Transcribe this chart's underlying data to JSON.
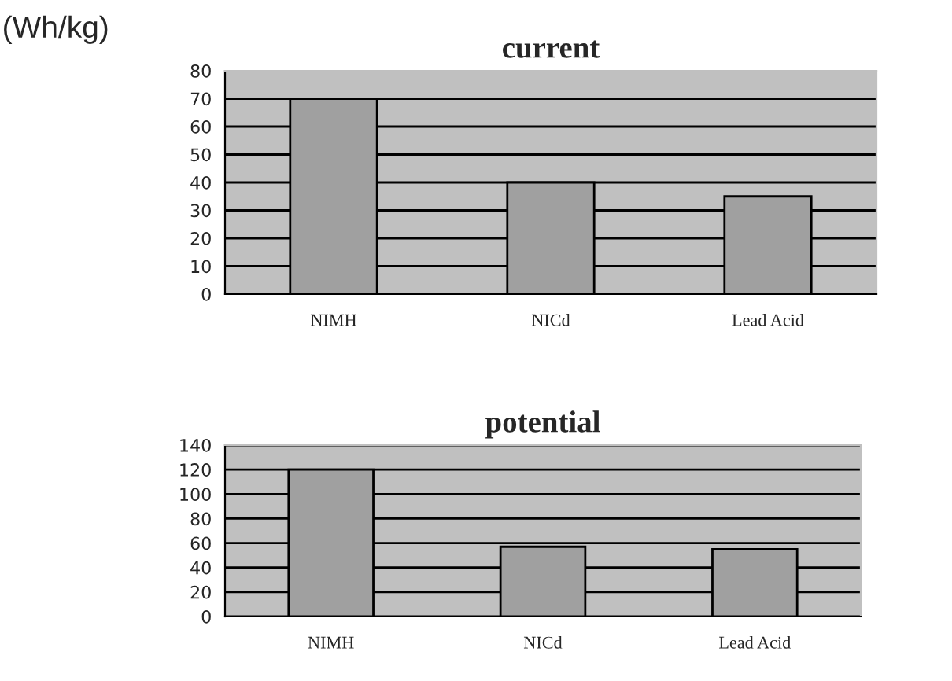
{
  "chart_data": [
    {
      "type": "bar",
      "title": "current",
      "ylabel": "(Wh/kg)",
      "categories": [
        "NIMH",
        "NICd",
        "Lead Acid"
      ],
      "values": [
        70,
        40,
        35
      ],
      "color": "#a0a0a0",
      "ylim": [
        0,
        80
      ],
      "yticks": [
        0,
        10,
        20,
        30,
        40,
        50,
        60,
        70,
        80
      ],
      "grid": "y"
    },
    {
      "type": "bar",
      "title": "potential",
      "categories": [
        "NIMH",
        "NICd",
        "Lead Acid"
      ],
      "values": [
        120,
        57,
        55
      ],
      "color": "#a0a0a0",
      "ylim": [
        0,
        140
      ],
      "yticks": [
        0,
        20,
        40,
        60,
        80,
        100,
        120,
        140
      ],
      "grid": "y"
    }
  ]
}
